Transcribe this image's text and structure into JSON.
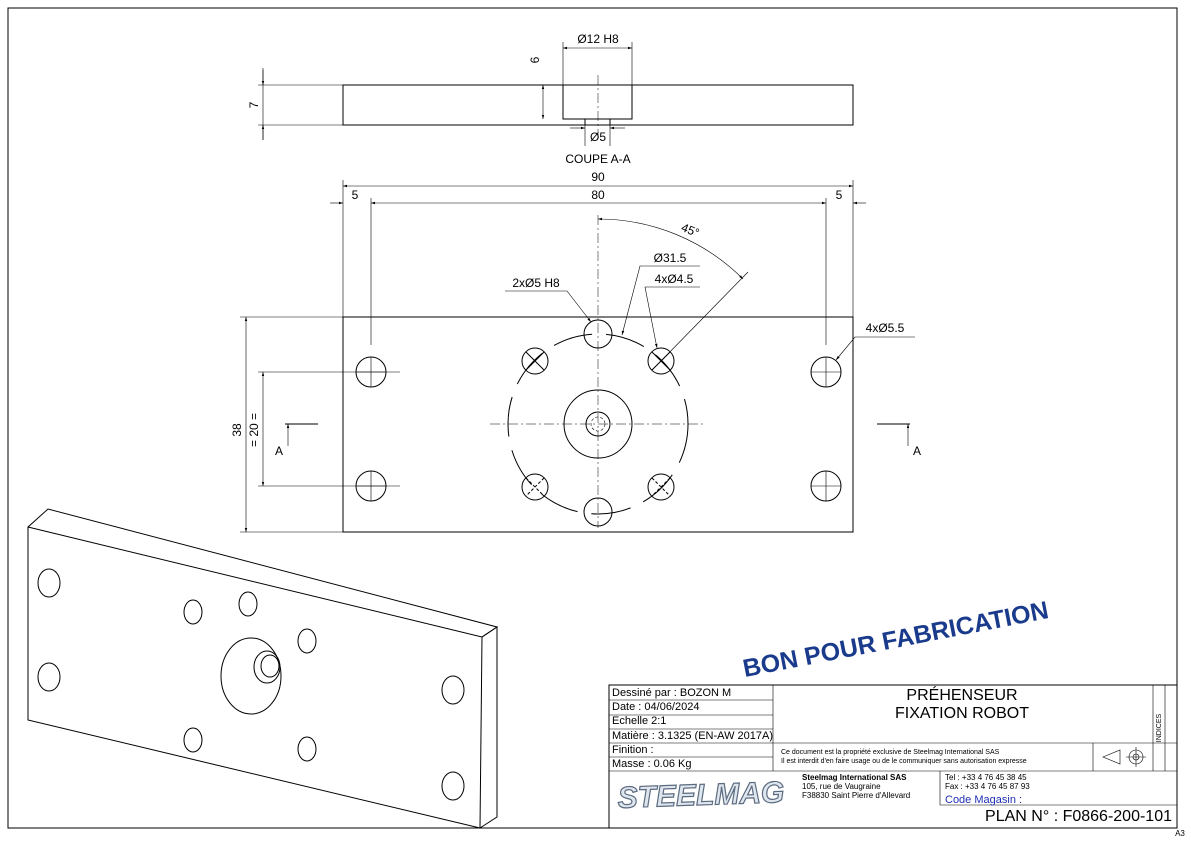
{
  "section_view": {
    "counterbore": "Ø12 H8",
    "counterbore_depth": "6",
    "thickness": "7",
    "through_hole": "Ø5",
    "label": "COUPE A-A"
  },
  "plan_view": {
    "overall_length": "90",
    "edge_offset_left": "5",
    "hole_spacing": "80",
    "edge_offset_right": "5",
    "angle": "45°",
    "bolt_circle": "Ø31.5",
    "dowel_holes": "2xØ5 H8",
    "tapped_holes": "4xØ4.5",
    "mount_holes": "4xØ5.5",
    "overall_width": "38",
    "row_spacing": "= 20 =",
    "section_marker_left": "A",
    "section_marker_right": "A"
  },
  "stamp": "BON POUR FABRICATION",
  "title_block": {
    "drawn_by": "Dessiné par : BOZON M",
    "date": "Date : 04/06/2024",
    "scale": "Echelle  2:1",
    "material": "Matière : 3.1325 (EN-AW 2017A)",
    "finish": "Finition :",
    "mass": "Masse : 0.06 Kg",
    "title_lines": [
      "PRÉHENSEUR",
      "FIXATION ROBOT"
    ],
    "legal": [
      "Ce document est la propriété exclusive de Steelmag International SAS",
      "Il est interdit d'en faire usage ou de le communiquer sans autorisation expresse"
    ],
    "company": {
      "name": "Steelmag International SAS",
      "address": [
        "105, rue de Vaugraine",
        "F38830 Saint Pierre d'Allevard"
      ]
    },
    "phone": "Tel : +33 4 76 45 38 45",
    "fax": "Fax : +33 4 76 45 87 93",
    "store_code": "Code Magasin :",
    "plan_number": "PLAN N° : F0866-200-101",
    "revisions": "INDICES",
    "logo": "STEELMAG",
    "sheet_size": "A3"
  }
}
